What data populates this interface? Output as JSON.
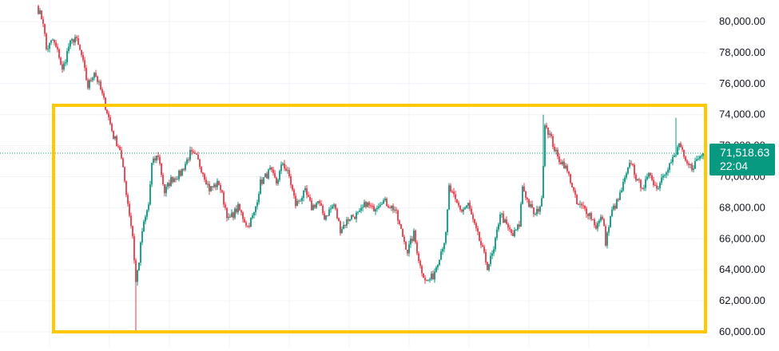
{
  "chart_data": {
    "type": "candlestick",
    "title": "",
    "xlabel": "",
    "ylabel": "",
    "ylim": [
      59800,
      81000
    ],
    "y_ticks": [
      60000,
      62000,
      64000,
      66000,
      68000,
      70000,
      72000,
      74000,
      76000,
      78000,
      80000
    ],
    "y_tick_labels": [
      "60,000.00",
      "62,000.00",
      "64,000.00",
      "66,000.00",
      "68,000.00",
      "70,000.00",
      "72,000.00",
      "74,000.00",
      "76,000.00",
      "78,000.00",
      "80,000.00"
    ],
    "grid": true,
    "legend": "none",
    "last_price": {
      "value": 71518.63,
      "label": "71,518.63",
      "countdown": "22:04"
    },
    "highlight_range": {
      "low": 60000,
      "high": 74600
    },
    "price_path": [
      [
        0,
        81000
      ],
      [
        4,
        80000
      ],
      [
        6,
        78200
      ],
      [
        10,
        78800
      ],
      [
        14,
        77800
      ],
      [
        16,
        76800
      ],
      [
        20,
        78400
      ],
      [
        24,
        79000
      ],
      [
        28,
        77800
      ],
      [
        32,
        75800
      ],
      [
        36,
        76800
      ],
      [
        40,
        75600
      ],
      [
        44,
        74200
      ],
      [
        48,
        72600
      ],
      [
        52,
        71800
      ],
      [
        56,
        69000
      ],
      [
        60,
        66200
      ],
      [
        62,
        63200
      ],
      [
        64,
        64600
      ],
      [
        66,
        66500
      ],
      [
        70,
        68200
      ],
      [
        72,
        70800
      ],
      [
        76,
        71400
      ],
      [
        80,
        69000
      ],
      [
        84,
        69800
      ],
      [
        90,
        70200
      ],
      [
        96,
        71500
      ],
      [
        100,
        71200
      ],
      [
        104,
        70300
      ],
      [
        108,
        69200
      ],
      [
        114,
        69600
      ],
      [
        120,
        67200
      ],
      [
        126,
        68000
      ],
      [
        132,
        66800
      ],
      [
        136,
        67600
      ],
      [
        140,
        69600
      ],
      [
        146,
        70400
      ],
      [
        150,
        69600
      ],
      [
        154,
        70900
      ],
      [
        158,
        70000
      ],
      [
        162,
        68200
      ],
      [
        168,
        69000
      ],
      [
        172,
        68000
      ],
      [
        176,
        68400
      ],
      [
        180,
        67400
      ],
      [
        186,
        68200
      ],
      [
        190,
        66600
      ],
      [
        196,
        67400
      ],
      [
        202,
        67600
      ],
      [
        206,
        68300
      ],
      [
        210,
        67900
      ],
      [
        216,
        68500
      ],
      [
        220,
        68200
      ],
      [
        224,
        67900
      ],
      [
        228,
        66500
      ],
      [
        232,
        65200
      ],
      [
        236,
        66300
      ],
      [
        240,
        64200
      ],
      [
        244,
        63200
      ],
      [
        248,
        63600
      ],
      [
        252,
        64900
      ],
      [
        256,
        66200
      ],
      [
        258,
        69300
      ],
      [
        262,
        68400
      ],
      [
        266,
        67800
      ],
      [
        270,
        68200
      ],
      [
        274,
        66800
      ],
      [
        278,
        65600
      ],
      [
        282,
        64200
      ],
      [
        286,
        65200
      ],
      [
        290,
        67700
      ],
      [
        294,
        66800
      ],
      [
        298,
        66200
      ],
      [
        302,
        66900
      ],
      [
        304,
        69400
      ],
      [
        308,
        68200
      ],
      [
        312,
        67500
      ],
      [
        316,
        68400
      ],
      [
        318,
        73500
      ],
      [
        322,
        72400
      ],
      [
        326,
        71200
      ],
      [
        330,
        70800
      ],
      [
        334,
        69800
      ],
      [
        338,
        68200
      ],
      [
        342,
        68000
      ],
      [
        346,
        67600
      ],
      [
        350,
        66800
      ],
      [
        354,
        67400
      ],
      [
        356,
        65800
      ],
      [
        360,
        67800
      ],
      [
        364,
        68500
      ],
      [
        368,
        69800
      ],
      [
        372,
        71000
      ],
      [
        376,
        69600
      ],
      [
        380,
        69400
      ],
      [
        384,
        70200
      ],
      [
        388,
        69200
      ],
      [
        392,
        70200
      ],
      [
        396,
        70800
      ],
      [
        400,
        71400
      ],
      [
        402,
        72200
      ],
      [
        406,
        70800
      ],
      [
        410,
        70600
      ],
      [
        414,
        71200
      ],
      [
        418,
        71600
      ],
      [
        422,
        71518.63
      ]
    ],
    "tall_wicks": [
      {
        "step": 62,
        "low": 60000
      },
      {
        "step": 400,
        "high": 73800
      },
      {
        "step": 317,
        "high": 74000
      }
    ]
  }
}
